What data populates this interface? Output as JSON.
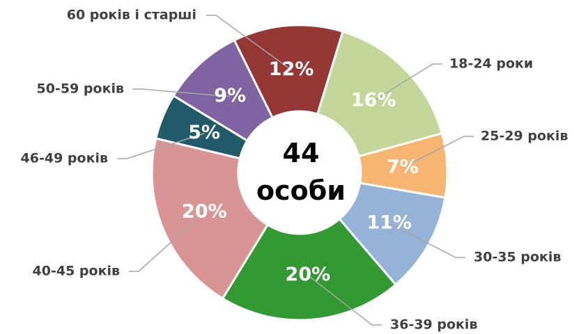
{
  "chart_data": {
    "type": "donut",
    "title": "44 особи",
    "categories": [
      "18-24 роки",
      "25-29 років",
      "30-35 років",
      "36-39 років",
      "40-45 років",
      "46-49 років",
      "50-59 років",
      "60 років і старші"
    ],
    "values": [
      16,
      7,
      11,
      20,
      20,
      5,
      9,
      12
    ],
    "value_labels": [
      "16%",
      "7%",
      "11%",
      "20%",
      "20%",
      "5%",
      "9%",
      "12%"
    ],
    "colors": [
      "#c4d79b",
      "#f8b572",
      "#95b3d7",
      "#339933",
      "#d99594",
      "#215a68",
      "#8064a2",
      "#953735"
    ]
  }
}
